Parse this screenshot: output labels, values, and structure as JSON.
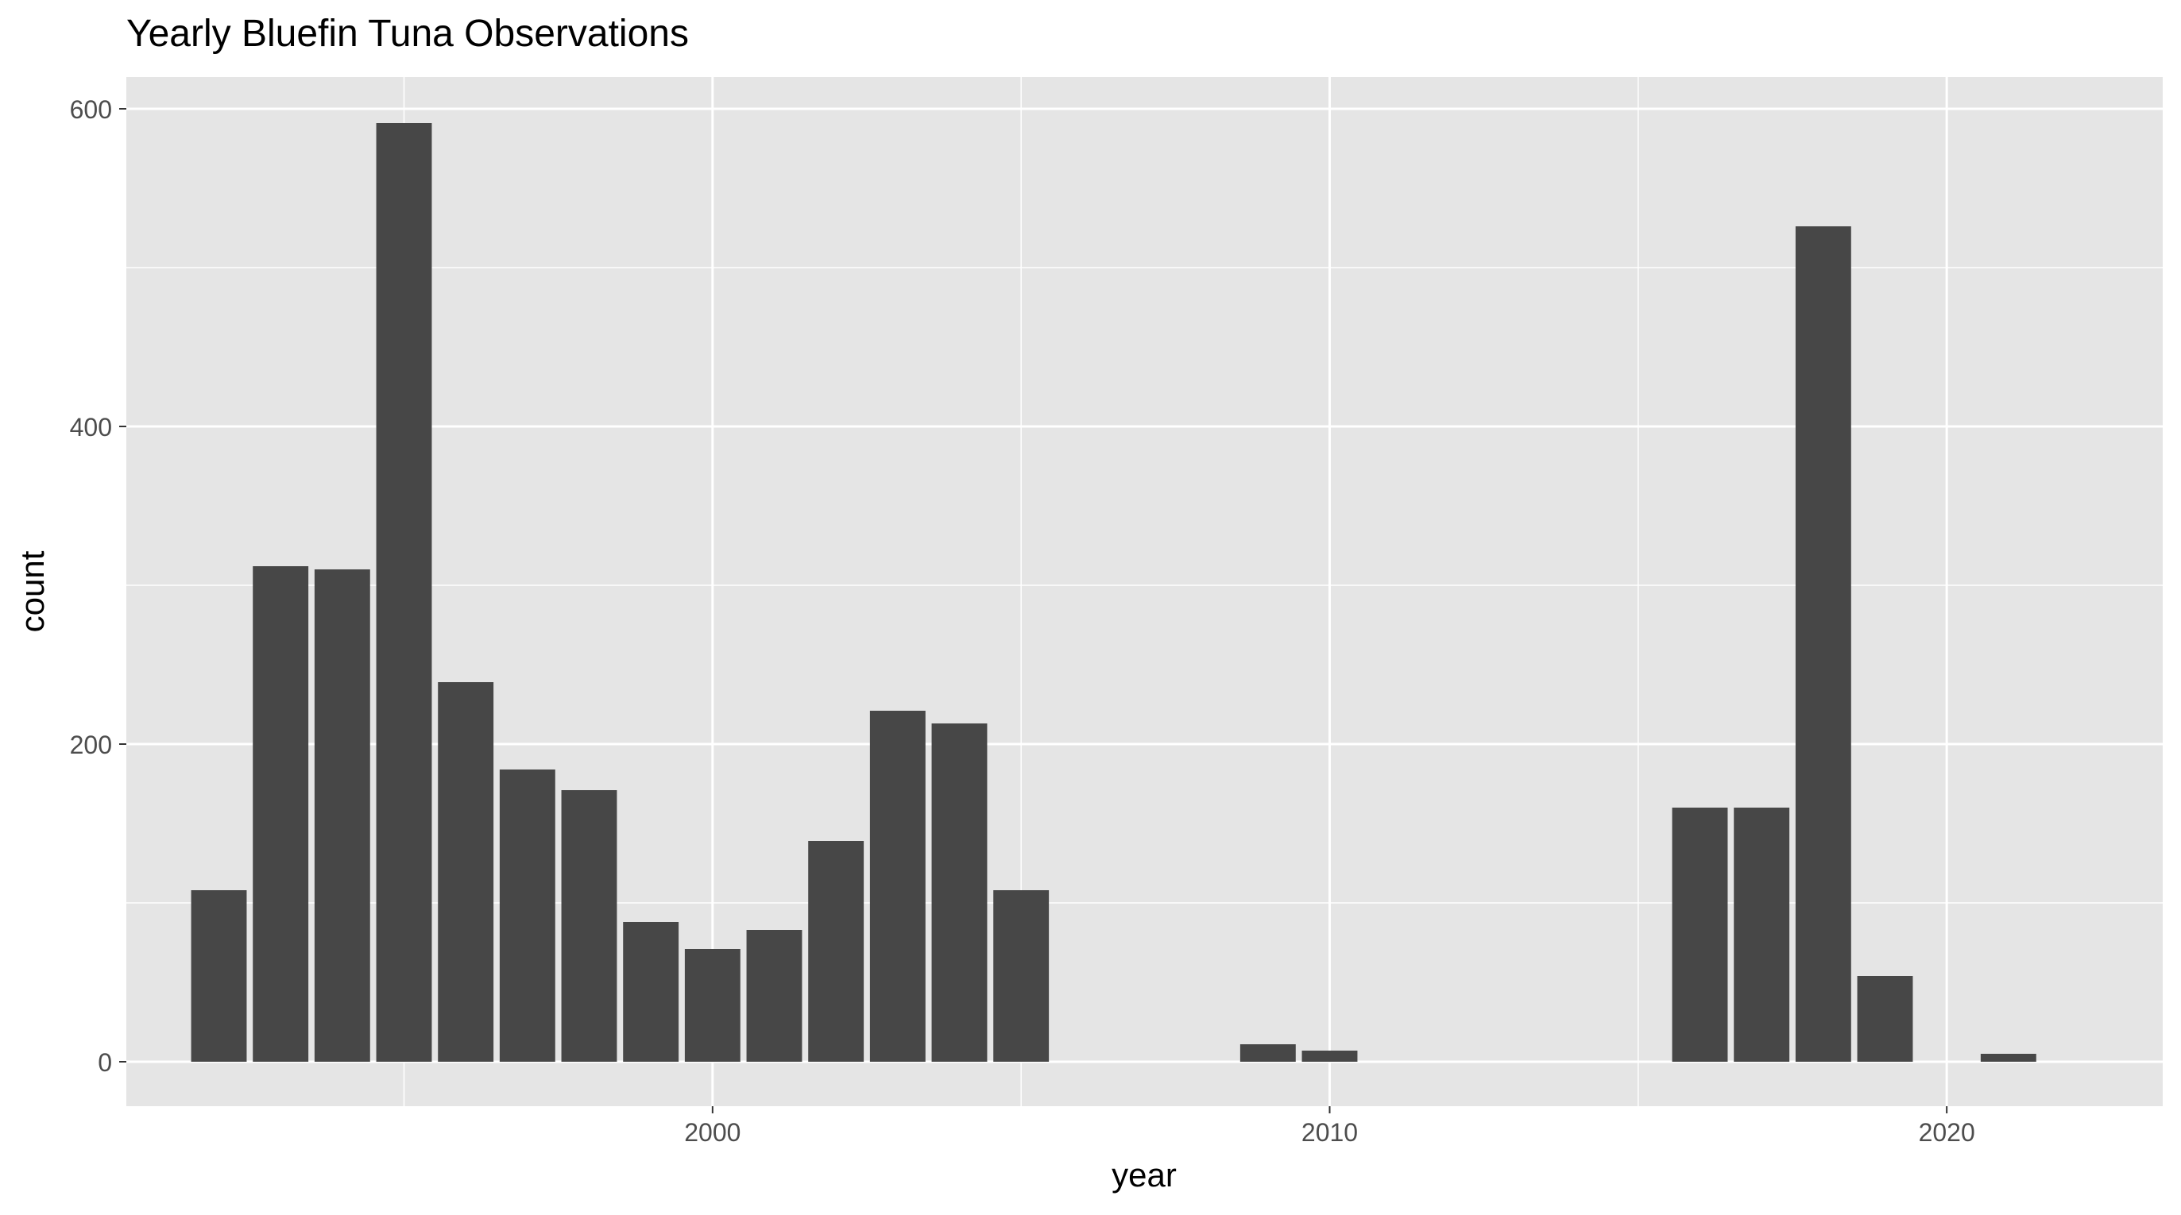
{
  "chart_data": {
    "type": "bar",
    "title": "Yearly Bluefin Tuna Observations",
    "xlabel": "year",
    "ylabel": "count",
    "x": [
      1992,
      1993,
      1994,
      1995,
      1996,
      1997,
      1998,
      1999,
      2000,
      2001,
      2002,
      2003,
      2004,
      2005,
      2009,
      2010,
      2016,
      2017,
      2018,
      2019,
      2021
    ],
    "values": [
      108,
      312,
      310,
      591,
      239,
      184,
      171,
      88,
      71,
      83,
      139,
      221,
      213,
      108,
      11,
      7,
      160,
      160,
      526,
      54,
      5
    ],
    "xlim": [
      1990.5,
      2023.5
    ],
    "ylim": [
      -28,
      620
    ],
    "x_ticks": [
      2000,
      2010,
      2020
    ],
    "x_tick_labels": [
      "2000",
      "2010",
      "2020"
    ],
    "x_minor_ticks": [
      1995,
      2005,
      2015
    ],
    "y_ticks": [
      0,
      200,
      400,
      600
    ],
    "y_tick_labels": [
      "0",
      "200",
      "400",
      "600"
    ],
    "y_minor_ticks": [
      100,
      300,
      500
    ],
    "grid": true,
    "panel_color": "#e5e5e5",
    "bar_color": "#474747",
    "grid_color": "#ffffff"
  }
}
